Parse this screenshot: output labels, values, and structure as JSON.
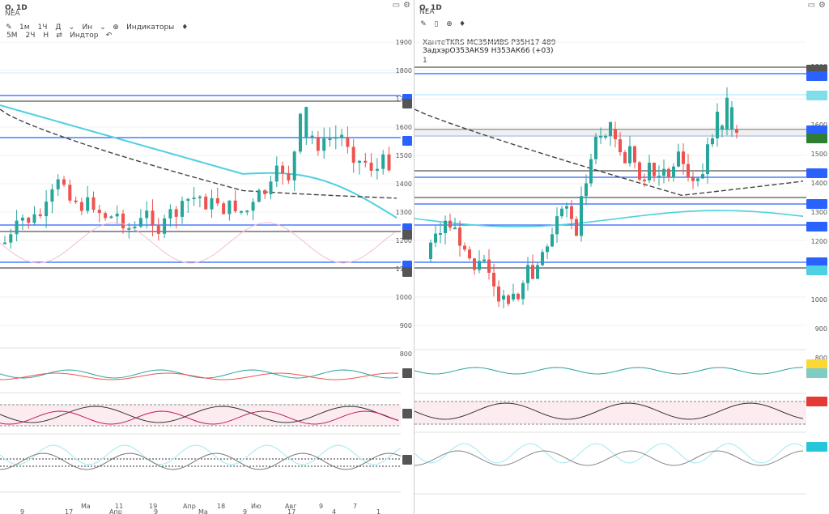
{
  "left": {
    "symbol": "O, 1D",
    "exchange": "NEA",
    "toolbar": [
      {
        "label": "1м",
        "name": "interval-1m"
      },
      {
        "label": "1Ч",
        "name": "interval-1h"
      },
      {
        "label": "Д",
        "name": "interval-day"
      },
      {
        "label": "Ин",
        "name": "interval-custom"
      },
      {
        "label": "Индикаторы",
        "name": "indicators-button"
      }
    ],
    "toolbar2": [
      {
        "label": "5М",
        "name": "interval-5m"
      },
      {
        "label": "2Ч",
        "name": "interval-2h"
      },
      {
        "label": "Н",
        "name": "interval-week"
      },
      {
        "label": "Индтор",
        "name": "indicator-template"
      }
    ],
    "yticks": [
      "1900",
      "1800",
      "1700",
      "1600",
      "1500",
      "1400",
      "1300",
      "1200",
      "1100",
      "1000",
      "900",
      "800"
    ],
    "xticks": [
      "Ма",
      "11",
      "19",
      "Апр",
      "18",
      "Ию",
      "Авг",
      "9",
      "7"
    ],
    "xticks2": [
      "9",
      "17",
      "Апр",
      "9",
      "Ма",
      "9",
      "17",
      "4",
      "1"
    ]
  },
  "right": {
    "symbol": "O, 1D",
    "exchange": "NEA",
    "legend1": "ХантеTKRS  МС35МИВS  Р35Н17 489",
    "legend2": "ЗадхэрО35ЗАКS9  Н35ЗАК66  (+03)",
    "legend3": "1",
    "yticks": [
      "1800",
      "1700",
      "1600",
      "1500",
      "1400",
      "1300",
      "1200",
      "1100",
      "1000",
      "900",
      "800"
    ]
  },
  "colors": {
    "up": "#26a69a",
    "down": "#ef5350",
    "level": "#2962ff",
    "ma": "#4dd0e1",
    "dark": "#555555"
  }
}
